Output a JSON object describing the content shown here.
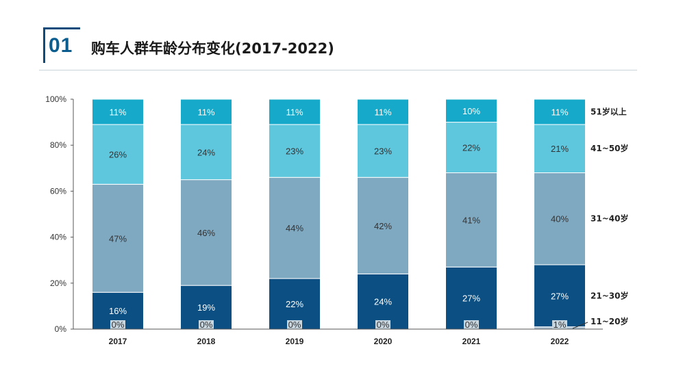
{
  "header": {
    "number": "01",
    "title": "购车人群年龄分布变化(2017-2022)"
  },
  "chart_data": {
    "type": "bar",
    "stacked": true,
    "title": "购车人群年龄分布变化(2017-2022)",
    "categories": [
      "2017",
      "2018",
      "2019",
      "2020",
      "2021",
      "2022"
    ],
    "ylim": [
      0,
      100
    ],
    "yticks": [
      "0%",
      "20%",
      "40%",
      "60%",
      "80%",
      "100%"
    ],
    "grid": false,
    "legend_position": "right",
    "series": [
      {
        "name": "11~20岁",
        "color": "#a9bfcf",
        "text_color": "#333333",
        "values": [
          0,
          0,
          0,
          0,
          0,
          1
        ],
        "labels": [
          "0%",
          "0%",
          "0%",
          "0%",
          "0%",
          "1%"
        ]
      },
      {
        "name": "21~30岁",
        "color": "#0b4f83",
        "text_color": "#ffffff",
        "values": [
          16,
          19,
          22,
          24,
          27,
          27
        ],
        "labels": [
          "16%",
          "19%",
          "22%",
          "24%",
          "27%",
          "27%"
        ]
      },
      {
        "name": "31~40岁",
        "color": "#7fa8c1",
        "text_color": "#333333",
        "values": [
          47,
          46,
          44,
          42,
          41,
          40
        ],
        "labels": [
          "47%",
          "46%",
          "44%",
          "42%",
          "41%",
          "40%"
        ]
      },
      {
        "name": "41~50岁",
        "color": "#5ec6dd",
        "text_color": "#333333",
        "values": [
          26,
          24,
          23,
          23,
          22,
          21
        ],
        "labels": [
          "26%",
          "24%",
          "23%",
          "23%",
          "22%",
          "21%"
        ]
      },
      {
        "name": "51岁以上",
        "color": "#17a9c9",
        "text_color": "#ffffff",
        "values": [
          11,
          11,
          11,
          11,
          10,
          11
        ],
        "labels": [
          "11%",
          "11%",
          "11%",
          "11%",
          "10%",
          "11%"
        ]
      }
    ]
  }
}
